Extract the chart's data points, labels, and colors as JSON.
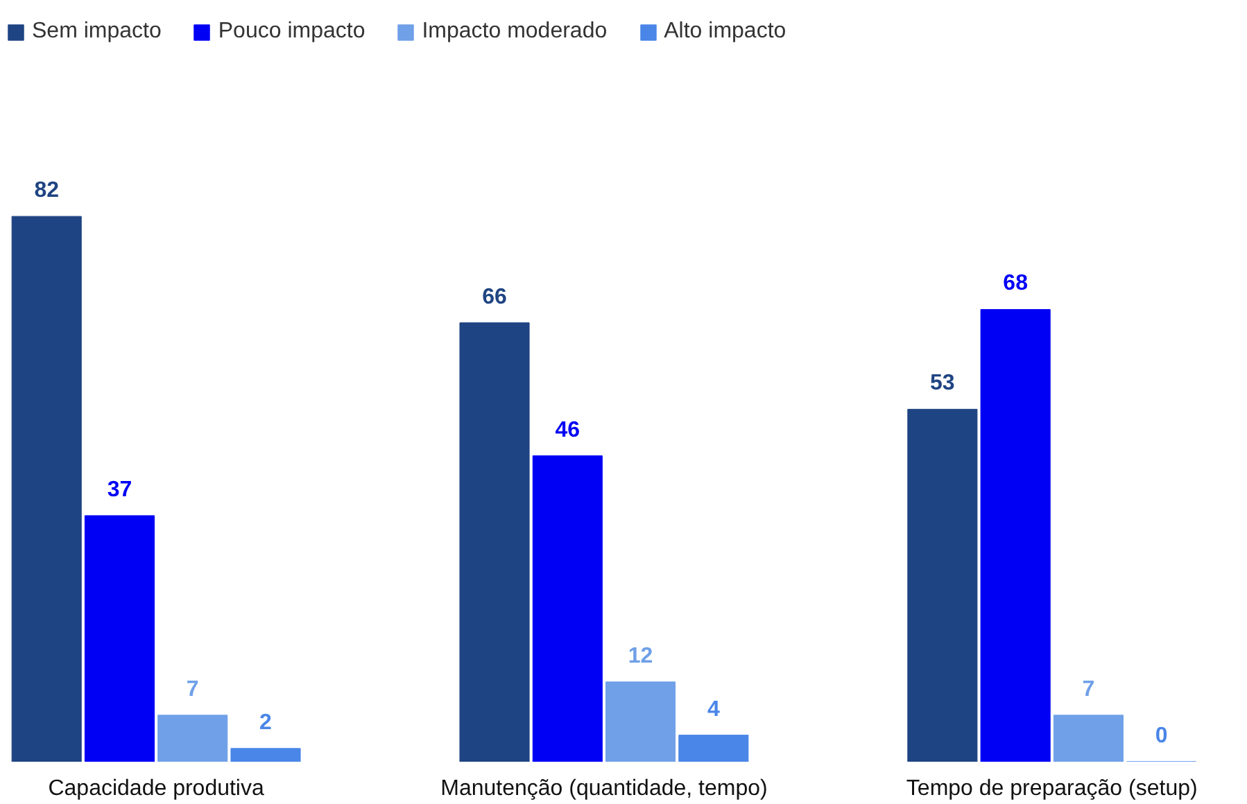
{
  "chart_data": {
    "type": "bar",
    "categories": [
      "Capacidade produtiva",
      "Manutenção (quantidade, tempo)",
      "Tempo de preparação (setup)"
    ],
    "series": [
      {
        "name": "Sem impacto",
        "color": "#1f4483",
        "values": [
          82,
          66,
          53
        ]
      },
      {
        "name": "Pouco impacto",
        "color": "#0000f5",
        "values": [
          37,
          46,
          68
        ]
      },
      {
        "name": "Impacto moderado",
        "color": "#6fa0e8",
        "values": [
          7,
          12,
          7
        ]
      },
      {
        "name": "Alto impacto",
        "color": "#4a86e8",
        "values": [
          2,
          4,
          0
        ]
      }
    ],
    "data_labels": true,
    "legend": "top left",
    "grid": false
  }
}
